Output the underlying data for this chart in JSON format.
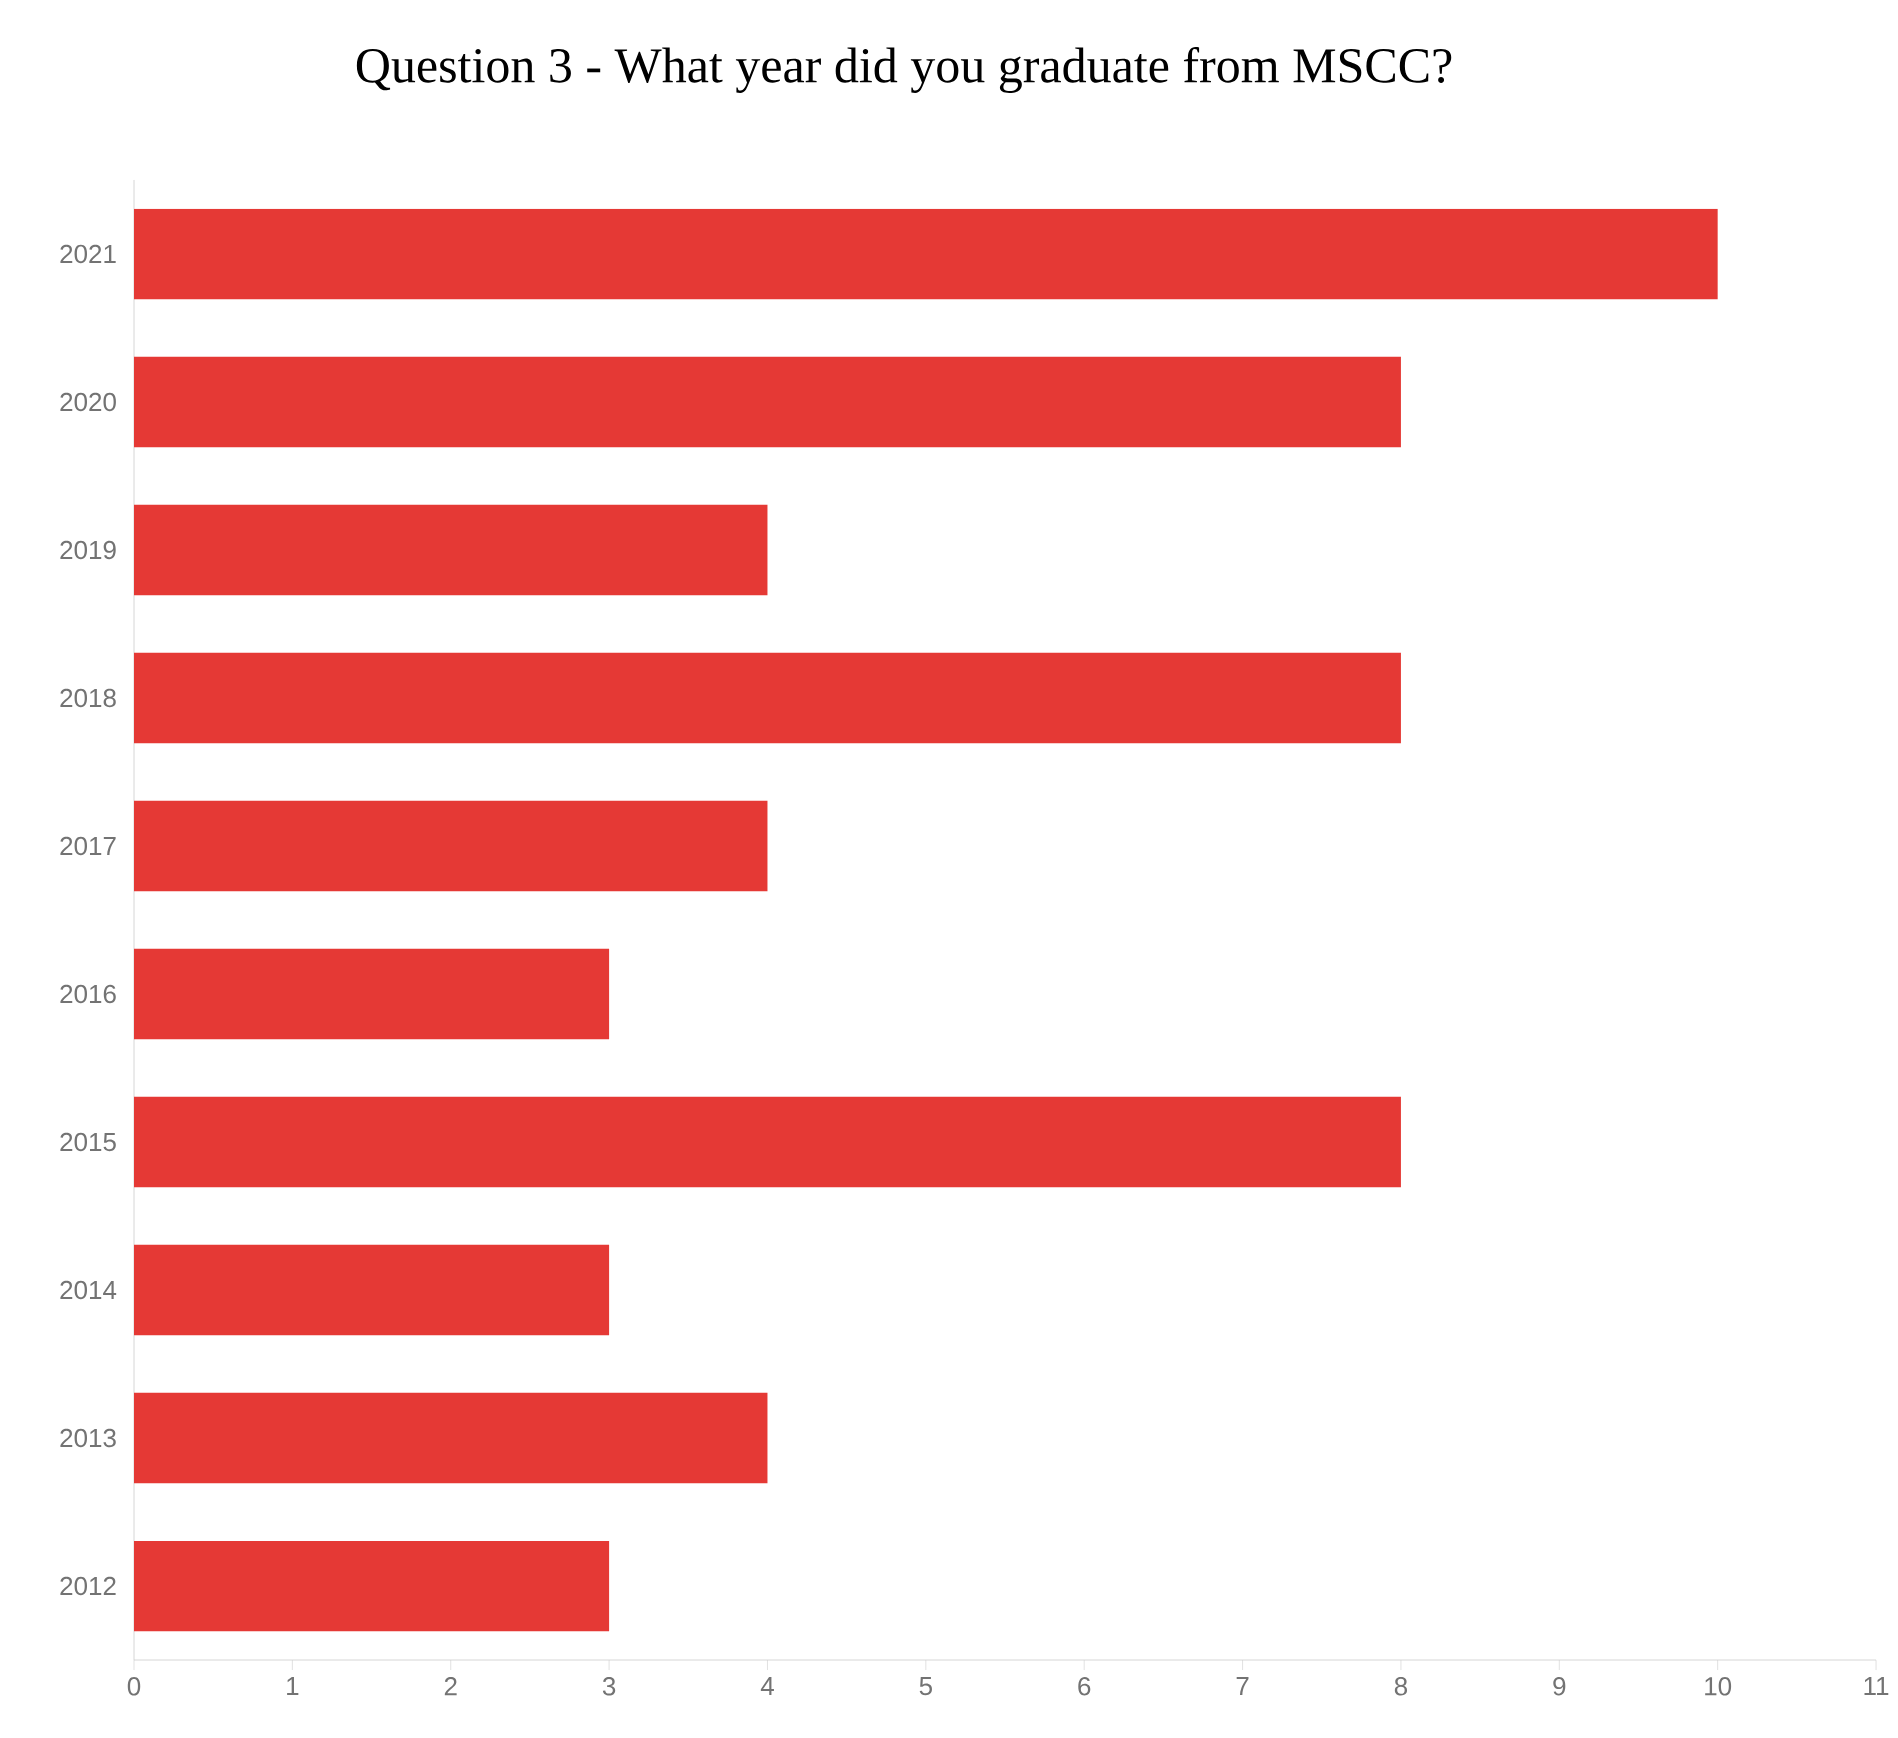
{
  "chart_data": {
    "type": "bar",
    "orientation": "horizontal",
    "title": "Question 3 - What year did you graduate from MSCC?",
    "categories": [
      "2021",
      "2020",
      "2019",
      "2018",
      "2017",
      "2016",
      "2015",
      "2014",
      "2013",
      "2012"
    ],
    "values": [
      10,
      8,
      4,
      8,
      4,
      3,
      8,
      3,
      4,
      3
    ],
    "color": "#e53935",
    "xlim": [
      0,
      11
    ],
    "xticks": [
      0,
      1,
      2,
      3,
      4,
      5,
      6,
      7,
      8,
      9,
      10,
      11
    ]
  }
}
